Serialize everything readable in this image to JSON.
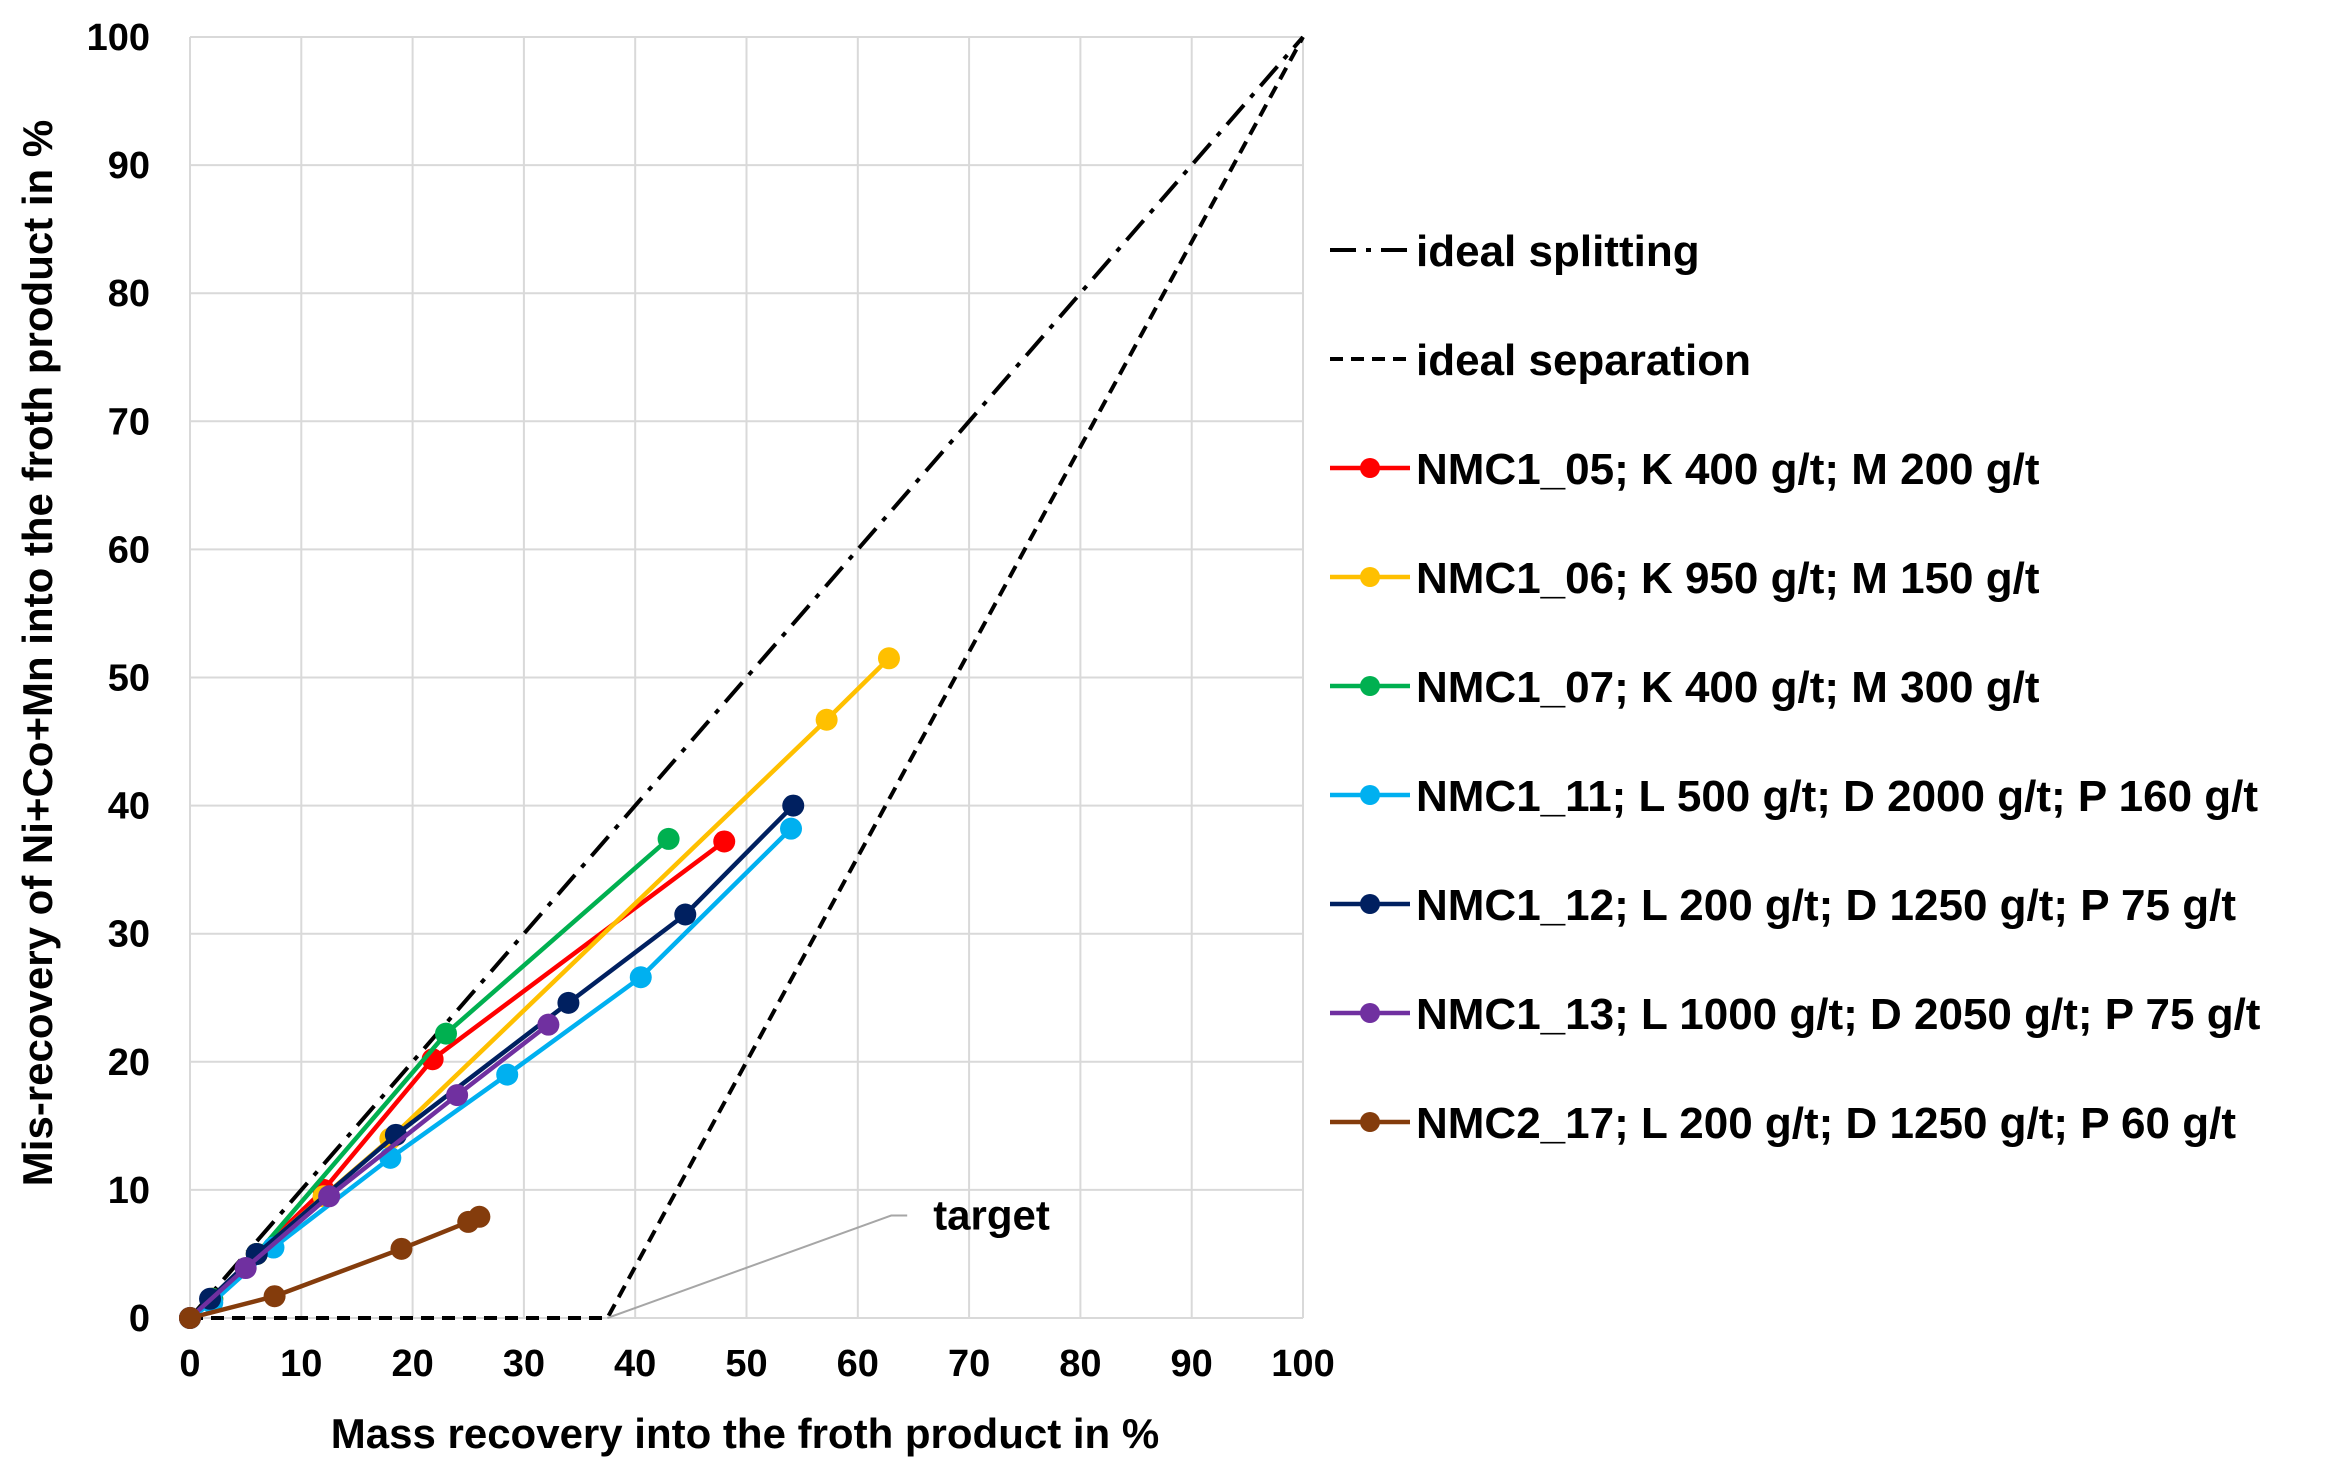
{
  "chart_data": {
    "type": "line",
    "title": "",
    "xlabel": "Mass recovery into the froth product in %",
    "ylabel": "Mis-recovery of Ni+Co+Mn into the froth product in %",
    "xlim": [
      0,
      100
    ],
    "ylim": [
      0,
      100
    ],
    "x_ticks": [
      "0",
      "10",
      "20",
      "30",
      "40",
      "50",
      "60",
      "70",
      "80",
      "90",
      "100"
    ],
    "y_ticks": [
      "0",
      "10",
      "20",
      "30",
      "40",
      "50",
      "60",
      "70",
      "80",
      "90",
      "100"
    ],
    "grid": true,
    "legend_position": "right",
    "reference_lines": [
      {
        "name": "ideal splitting",
        "style": "dash-dot",
        "color": "#000000",
        "points": [
          [
            0,
            0
          ],
          [
            100,
            100
          ]
        ]
      },
      {
        "name": "ideal separation",
        "style": "dashed",
        "color": "#000000",
        "points": [
          [
            0,
            0
          ],
          [
            37.5,
            0
          ],
          [
            100,
            100
          ]
        ]
      }
    ],
    "series": [
      {
        "name": "NMC1_05; K 400 g/t; M 200 g/t",
        "color": "#ff0000",
        "points": [
          [
            0,
            0
          ],
          [
            2,
            1.5
          ],
          [
            6,
            5
          ],
          [
            12,
            10
          ],
          [
            21.8,
            20.2
          ],
          [
            48,
            37.2
          ]
        ]
      },
      {
        "name": "NMC1_06; K 950 g/t; M 150 g/t",
        "color": "#ffc000",
        "points": [
          [
            0,
            0
          ],
          [
            2,
            1.5
          ],
          [
            6,
            5
          ],
          [
            12,
            9.5
          ],
          [
            18,
            14
          ],
          [
            57.2,
            46.7
          ],
          [
            62.8,
            51.5
          ]
        ]
      },
      {
        "name": "NMC1_07; K 400 g/t; M 300 g/t",
        "color": "#00b050",
        "points": [
          [
            0,
            0
          ],
          [
            2,
            1.5
          ],
          [
            6,
            5
          ],
          [
            23,
            22.2
          ],
          [
            43,
            37.4
          ]
        ]
      },
      {
        "name": "NMC1_11; L 500 g/t; D 2000 g/t; P 160 g/t",
        "color": "#00b0f0",
        "points": [
          [
            0,
            0
          ],
          [
            2,
            1.2
          ],
          [
            7.5,
            5.5
          ],
          [
            18,
            12.5
          ],
          [
            28.5,
            19
          ],
          [
            40.5,
            26.6
          ],
          [
            54,
            38.2
          ]
        ]
      },
      {
        "name": "NMC1_12; L 200 g/t; D 1250 g/t; P 75 g/t",
        "color": "#002060",
        "points": [
          [
            0,
            0
          ],
          [
            1.8,
            1.5
          ],
          [
            6,
            5
          ],
          [
            18.5,
            14.3
          ],
          [
            34,
            24.6
          ],
          [
            44.5,
            31.5
          ],
          [
            54.2,
            40
          ]
        ]
      },
      {
        "name": "NMC1_13; L 1000 g/t; D 2050 g/t; P 75 g/t",
        "color": "#7030a0",
        "points": [
          [
            0,
            0
          ],
          [
            5,
            3.9
          ],
          [
            12.5,
            9.5
          ],
          [
            24,
            17.4
          ],
          [
            32.2,
            22.9
          ]
        ]
      },
      {
        "name": "NMC2_17; L 200 g/t; D 1250 g/t; P 60 g/t",
        "color": "#843c0c",
        "points": [
          [
            0,
            0
          ],
          [
            7.6,
            1.7
          ],
          [
            19,
            5.4
          ],
          [
            25,
            7.5
          ],
          [
            26,
            7.9
          ]
        ]
      }
    ],
    "annotations": [
      {
        "text": "target",
        "pointer_from": [
          37.5,
          0
        ],
        "pointer_to": [
          63,
          8
        ]
      }
    ]
  }
}
